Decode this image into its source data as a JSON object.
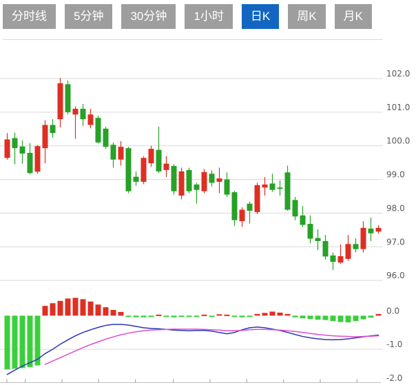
{
  "tabs": [
    {
      "label": "分时线",
      "active": false
    },
    {
      "label": "5分钟",
      "active": false
    },
    {
      "label": "30分钟",
      "active": false
    },
    {
      "label": "1小时",
      "active": false
    },
    {
      "label": "日K",
      "active": true
    },
    {
      "label": "周K",
      "active": false
    },
    {
      "label": "月K",
      "active": false
    }
  ],
  "colors": {
    "tab_inactive_bg": "#9e9e9e",
    "tab_active_bg": "#1266c2",
    "tab_text": "#ffffff",
    "candle_up": "#df2f23",
    "candle_down": "#27a127",
    "macd_pos": "#df2f23",
    "macd_neg": "#3ccf3c",
    "dif_line": "#2b35b5",
    "dea_line": "#dd4ccc",
    "gridline": "#d9d9d9",
    "axis_line": "#bdbdbd",
    "axis_text": "#595959"
  },
  "chart_data": {
    "type": "candlestick",
    "title": "",
    "xlabel": "",
    "ylabel": "",
    "legend": "none",
    "grid": "horizontal-only",
    "price_axis_ticks": [
      "102.0",
      "101.0",
      "100.0",
      "99.0",
      "98.0",
      "97.0",
      "96.0"
    ],
    "price_axis_values": [
      102.0,
      101.0,
      100.0,
      99.0,
      98.0,
      97.0,
      96.0
    ],
    "price_ylim": [
      95.5,
      102.5
    ],
    "indicator": "MACD",
    "macd_axis_ticks": [
      "0.0",
      "-1.0",
      "-2.0"
    ],
    "macd_axis_values": [
      0.0,
      -1.0,
      -2.0
    ],
    "macd_ylim": [
      -2.1,
      0.6
    ],
    "candles": [
      {
        "o": 99.64,
        "h": 100.38,
        "l": 99.59,
        "c": 100.19
      },
      {
        "o": 100.23,
        "h": 100.39,
        "l": 99.45,
        "c": 99.93
      },
      {
        "o": 99.98,
        "h": 100.16,
        "l": 99.47,
        "c": 99.77
      },
      {
        "o": 99.79,
        "h": 100.08,
        "l": 99.15,
        "c": 99.19
      },
      {
        "o": 99.23,
        "h": 100.02,
        "l": 99.17,
        "c": 99.99
      },
      {
        "o": 99.93,
        "h": 100.76,
        "l": 99.48,
        "c": 100.62
      },
      {
        "o": 100.62,
        "h": 100.79,
        "l": 100.24,
        "c": 100.38
      },
      {
        "o": 100.79,
        "h": 102.02,
        "l": 100.55,
        "c": 101.86
      },
      {
        "o": 101.83,
        "h": 101.94,
        "l": 100.93,
        "c": 101.0
      },
      {
        "o": 100.93,
        "h": 101.17,
        "l": 100.21,
        "c": 101.1
      },
      {
        "o": 101.1,
        "h": 101.24,
        "l": 100.59,
        "c": 100.79
      },
      {
        "o": 100.62,
        "h": 101.1,
        "l": 100.52,
        "c": 100.93
      },
      {
        "o": 100.83,
        "h": 100.9,
        "l": 100.07,
        "c": 100.1
      },
      {
        "o": 100.51,
        "h": 100.57,
        "l": 99.91,
        "c": 99.97
      },
      {
        "o": 100.03,
        "h": 100.1,
        "l": 99.35,
        "c": 99.59
      },
      {
        "o": 99.59,
        "h": 100.14,
        "l": 99.41,
        "c": 99.97
      },
      {
        "o": 99.93,
        "h": 99.97,
        "l": 98.59,
        "c": 98.65
      },
      {
        "o": 99.08,
        "h": 99.24,
        "l": 98.81,
        "c": 98.93
      },
      {
        "o": 98.93,
        "h": 99.69,
        "l": 98.86,
        "c": 99.64
      },
      {
        "o": 99.48,
        "h": 100.0,
        "l": 99.38,
        "c": 99.91
      },
      {
        "o": 99.88,
        "h": 100.57,
        "l": 99.19,
        "c": 99.24
      },
      {
        "o": 99.28,
        "h": 99.69,
        "l": 99.07,
        "c": 99.47
      },
      {
        "o": 99.4,
        "h": 99.45,
        "l": 98.55,
        "c": 98.65
      },
      {
        "o": 98.52,
        "h": 99.35,
        "l": 98.41,
        "c": 99.24
      },
      {
        "o": 99.28,
        "h": 99.35,
        "l": 98.59,
        "c": 98.65
      },
      {
        "o": 98.85,
        "h": 98.9,
        "l": 98.28,
        "c": 98.69
      },
      {
        "o": 98.65,
        "h": 99.31,
        "l": 98.59,
        "c": 99.22
      },
      {
        "o": 99.17,
        "h": 99.27,
        "l": 98.79,
        "c": 98.9
      },
      {
        "o": 98.93,
        "h": 99.35,
        "l": 98.59,
        "c": 99.03
      },
      {
        "o": 99.0,
        "h": 99.21,
        "l": 98.48,
        "c": 98.55
      },
      {
        "o": 98.62,
        "h": 98.66,
        "l": 97.61,
        "c": 97.79
      },
      {
        "o": 97.76,
        "h": 98.17,
        "l": 97.59,
        "c": 98.1
      },
      {
        "o": 98.28,
        "h": 98.34,
        "l": 97.69,
        "c": 98.07
      },
      {
        "o": 98.03,
        "h": 98.9,
        "l": 97.97,
        "c": 98.83
      },
      {
        "o": 98.76,
        "h": 99.07,
        "l": 98.52,
        "c": 98.85
      },
      {
        "o": 98.88,
        "h": 99.17,
        "l": 98.63,
        "c": 98.69
      },
      {
        "o": 98.76,
        "h": 98.97,
        "l": 98.52,
        "c": 98.72
      },
      {
        "o": 99.21,
        "h": 99.41,
        "l": 98.07,
        "c": 98.1
      },
      {
        "o": 98.39,
        "h": 98.48,
        "l": 97.79,
        "c": 97.9
      },
      {
        "o": 97.93,
        "h": 98.21,
        "l": 97.59,
        "c": 97.65
      },
      {
        "o": 97.68,
        "h": 97.93,
        "l": 97.1,
        "c": 97.24
      },
      {
        "o": 97.26,
        "h": 97.52,
        "l": 96.9,
        "c": 97.17
      },
      {
        "o": 97.17,
        "h": 97.35,
        "l": 96.62,
        "c": 96.71
      },
      {
        "o": 96.74,
        "h": 96.83,
        "l": 96.31,
        "c": 96.55
      },
      {
        "o": 96.53,
        "h": 97.07,
        "l": 96.49,
        "c": 96.72
      },
      {
        "o": 96.64,
        "h": 97.35,
        "l": 96.58,
        "c": 97.08
      },
      {
        "o": 97.08,
        "h": 97.25,
        "l": 96.83,
        "c": 96.93
      },
      {
        "o": 96.93,
        "h": 97.76,
        "l": 96.83,
        "c": 97.56
      },
      {
        "o": 97.54,
        "h": 97.87,
        "l": 97.17,
        "c": 97.4
      },
      {
        "o": 97.45,
        "h": 97.64,
        "l": 97.39,
        "c": 97.56
      }
    ],
    "macd_histogram": [
      -1.6,
      -1.58,
      -1.56,
      -1.53,
      -1.48,
      0.29,
      0.37,
      0.44,
      0.51,
      0.53,
      0.49,
      0.42,
      0.33,
      0.25,
      0.17,
      0.11,
      -0.04,
      -0.05,
      -0.05,
      -0.04,
      0.03,
      -0.04,
      -0.05,
      -0.04,
      -0.03,
      -0.04,
      0.03,
      -0.04,
      0.04,
      0.03,
      -0.04,
      -0.05,
      -0.04,
      0.05,
      0.08,
      0.12,
      0.09,
      0.05,
      -0.05,
      -0.08,
      -0.1,
      -0.12,
      -0.13,
      -0.16,
      -0.19,
      -0.2,
      -0.16,
      -0.11,
      -0.06,
      0.05
    ],
    "dif_line": [
      -1.75,
      -1.62,
      -1.5,
      -1.4,
      -1.3,
      -1.13,
      -1.0,
      -0.85,
      -0.72,
      -0.6,
      -0.5,
      -0.42,
      -0.35,
      -0.29,
      -0.26,
      -0.26,
      -0.28,
      -0.32,
      -0.36,
      -0.38,
      -0.39,
      -0.41,
      -0.43,
      -0.44,
      -0.45,
      -0.44,
      -0.44,
      -0.46,
      -0.5,
      -0.54,
      -0.5,
      -0.42,
      -0.36,
      -0.34,
      -0.36,
      -0.4,
      -0.44,
      -0.5,
      -0.56,
      -0.62,
      -0.66,
      -0.69,
      -0.71,
      -0.72,
      -0.71,
      -0.69,
      -0.66,
      -0.63,
      -0.6,
      -0.58
    ],
    "dea_line": [
      null,
      null,
      null,
      null,
      null,
      -1.45,
      -1.35,
      -1.25,
      -1.15,
      -1.05,
      -0.95,
      -0.86,
      -0.78,
      -0.7,
      -0.63,
      -0.57,
      -0.52,
      -0.48,
      -0.45,
      -0.43,
      -0.42,
      -0.41,
      -0.4,
      -0.4,
      -0.4,
      -0.4,
      -0.41,
      -0.42,
      -0.43,
      -0.45,
      -0.45,
      -0.44,
      -0.42,
      -0.41,
      -0.41,
      -0.42,
      -0.43,
      -0.45,
      -0.47,
      -0.5,
      -0.53,
      -0.56,
      -0.58,
      -0.6,
      -0.61,
      -0.62,
      -0.63,
      -0.62,
      -0.61,
      -0.6
    ]
  }
}
